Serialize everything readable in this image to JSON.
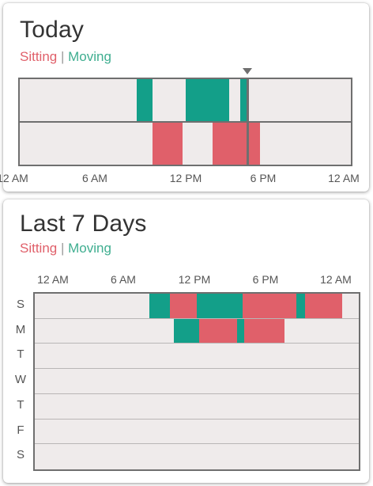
{
  "colors": {
    "sitting": "#e0606a",
    "moving": "#139f89",
    "plot_bg": "#efebeb",
    "grid": "#6f6f6f"
  },
  "today": {
    "title": "Today",
    "legend": {
      "sitting": "Sitting",
      "separator": "|",
      "moving": "Moving"
    },
    "axis_labels": [
      "12 AM",
      "6 AM",
      "12 PM",
      "6 PM",
      "12 AM"
    ],
    "current_hour": 16.5,
    "moving": [
      [
        8.5,
        9.6
      ],
      [
        12.0,
        15.2
      ],
      [
        16.0,
        16.5
      ]
    ],
    "sitting": [
      [
        9.6,
        11.8
      ],
      [
        14.0,
        17.4
      ]
    ]
  },
  "week": {
    "title": "Last 7 Days",
    "legend": {
      "sitting": "Sitting",
      "separator": "|",
      "moving": "Moving"
    },
    "axis_labels": [
      "12 AM",
      "6 AM",
      "12 PM",
      "6 PM",
      "12 AM"
    ],
    "days": [
      {
        "label": "S",
        "segments": [
          {
            "kind": "moving",
            "from": 8.5,
            "to": 10.0
          },
          {
            "kind": "sitting",
            "from": 10.0,
            "to": 12.0
          },
          {
            "kind": "moving",
            "from": 12.0,
            "to": 15.4
          },
          {
            "kind": "sitting",
            "from": 15.4,
            "to": 19.4
          },
          {
            "kind": "moving",
            "from": 19.4,
            "to": 20.0
          },
          {
            "kind": "sitting",
            "from": 20.0,
            "to": 22.8
          }
        ]
      },
      {
        "label": "M",
        "segments": [
          {
            "kind": "moving",
            "from": 10.3,
            "to": 12.2
          },
          {
            "kind": "sitting",
            "from": 12.2,
            "to": 15.0
          },
          {
            "kind": "moving",
            "from": 15.0,
            "to": 15.5
          },
          {
            "kind": "sitting",
            "from": 15.5,
            "to": 18.5
          }
        ]
      },
      {
        "label": "T",
        "segments": []
      },
      {
        "label": "W",
        "segments": []
      },
      {
        "label": "T",
        "segments": []
      },
      {
        "label": "F",
        "segments": []
      },
      {
        "label": "S",
        "segments": []
      }
    ]
  }
}
